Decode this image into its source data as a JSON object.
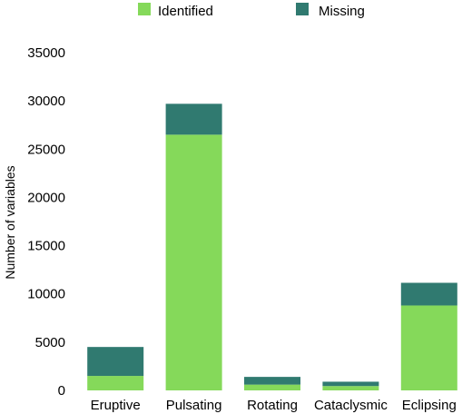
{
  "chart_data": {
    "type": "bar",
    "stacked": true,
    "categories": [
      "Eruptive",
      "Pulsating",
      "Rotating",
      "Cataclysmic",
      "Eclipsing"
    ],
    "series": [
      {
        "name": "Identified",
        "color": "#85d95a",
        "values": [
          1500,
          26500,
          600,
          450,
          8800
        ]
      },
      {
        "name": "Missing",
        "color": "#307a70",
        "values": [
          3000,
          3200,
          800,
          450,
          2350
        ]
      }
    ],
    "ylabel": "Number of variables",
    "xlabel": "",
    "ylim": [
      0,
      35000
    ],
    "yticks": [
      0,
      5000,
      10000,
      15000,
      20000,
      25000,
      30000,
      35000
    ],
    "grid": false,
    "legend": "top-center"
  }
}
